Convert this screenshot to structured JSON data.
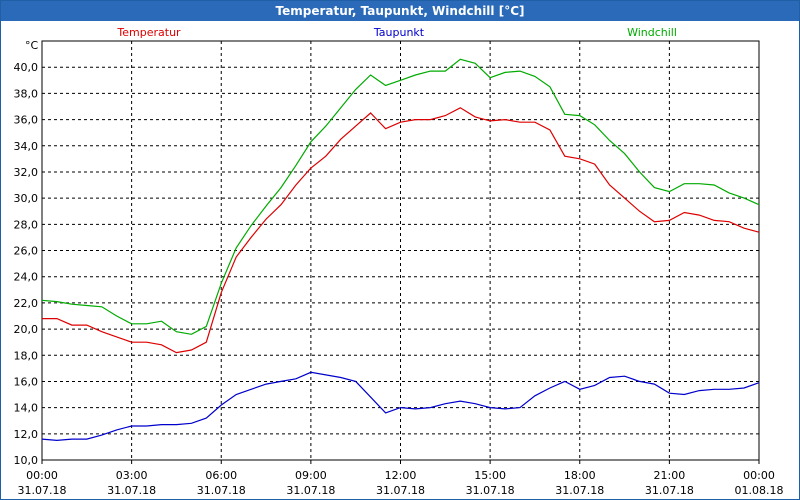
{
  "window": {
    "title": "Temperatur, Taupunkt, Windchill [°C]"
  },
  "colors": {
    "temperatur": "#dd0000",
    "taupunkt": "#0000cc",
    "windchill": "#00aa00",
    "grid": "#000000",
    "titlebar": "#2a6ab8"
  },
  "chart_data": {
    "type": "line",
    "title": "Temperatur, Taupunkt, Windchill [°C]",
    "ylabel": "°C",
    "ylim": [
      10,
      42
    ],
    "xlim": [
      0,
      24
    ],
    "y_ticks": [
      "10,0",
      "12,0",
      "14,0",
      "16,0",
      "18,0",
      "20,0",
      "22,0",
      "24,0",
      "26,0",
      "28,0",
      "30,0",
      "32,0",
      "34,0",
      "36,0",
      "38,0",
      "40,0"
    ],
    "x_ticks": [
      {
        "time": "00:00",
        "date": "31.07.18"
      },
      {
        "time": "03:00",
        "date": "31.07.18"
      },
      {
        "time": "06:00",
        "date": "31.07.18"
      },
      {
        "time": "09:00",
        "date": "31.07.18"
      },
      {
        "time": "12:00",
        "date": "31.07.18"
      },
      {
        "time": "15:00",
        "date": "31.07.18"
      },
      {
        "time": "18:00",
        "date": "31.07.18"
      },
      {
        "time": "21:00",
        "date": "31.07.18"
      },
      {
        "time": "00:00",
        "date": "01.08.18"
      }
    ],
    "grid": true,
    "legend": "top",
    "series": [
      {
        "name": "Temperatur",
        "x": [
          0,
          0.5,
          1,
          1.5,
          2,
          2.5,
          3,
          3.5,
          4,
          4.5,
          5,
          5.5,
          6,
          6.5,
          7,
          7.5,
          8,
          8.5,
          9,
          9.5,
          10,
          10.5,
          11,
          11.5,
          12,
          12.5,
          13,
          13.5,
          14,
          14.5,
          15,
          15.5,
          16,
          16.5,
          17,
          17.5,
          18,
          18.5,
          19,
          19.5,
          20,
          20.5,
          21,
          21.5,
          22,
          22.5,
          23,
          23.5,
          24
        ],
        "values": [
          20.8,
          20.8,
          20.3,
          20.3,
          19.8,
          19.4,
          19.0,
          19.0,
          18.8,
          18.2,
          18.4,
          19.0,
          22.8,
          25.5,
          27.0,
          28.4,
          29.5,
          31.0,
          32.3,
          33.2,
          34.5,
          35.5,
          36.5,
          35.3,
          35.8,
          36.0,
          36.0,
          36.3,
          36.9,
          36.2,
          35.9,
          36.0,
          35.8,
          35.8,
          35.2,
          33.2,
          33.0,
          32.6,
          31.0,
          30.0,
          29.0,
          28.2,
          28.3,
          28.9,
          28.7,
          28.3,
          28.2,
          27.7,
          27.4
        ]
      },
      {
        "name": "Taupunkt",
        "values": [
          11.6,
          11.5,
          11.6,
          11.6,
          11.9,
          12.3,
          12.6,
          12.6,
          12.7,
          12.7,
          12.8,
          13.2,
          14.2,
          15.0,
          15.4,
          15.8,
          16.0,
          16.2,
          16.7,
          16.5,
          16.3,
          16.0,
          14.8,
          13.6,
          14.0,
          13.9,
          14.0,
          14.3,
          14.5,
          14.3,
          14.0,
          13.9,
          14.0,
          14.9,
          15.5,
          16.0,
          15.4,
          15.7,
          16.3,
          16.4,
          16.0,
          15.8,
          15.1,
          15.0,
          15.3,
          15.4,
          15.4,
          15.5,
          15.9
        ]
      },
      {
        "name": "Windchill",
        "values": [
          22.2,
          22.1,
          21.9,
          21.8,
          21.7,
          21.0,
          20.4,
          20.4,
          20.6,
          19.8,
          19.6,
          20.2,
          23.5,
          26.2,
          27.9,
          29.4,
          30.8,
          32.5,
          34.3,
          35.5,
          36.9,
          38.3,
          39.4,
          38.6,
          39.0,
          39.4,
          39.7,
          39.7,
          40.6,
          40.3,
          39.2,
          39.6,
          39.7,
          39.3,
          38.5,
          36.4,
          36.3,
          35.6,
          34.4,
          33.4,
          32.0,
          30.8,
          30.5,
          31.1,
          31.1,
          31.0,
          30.4,
          30.0,
          29.5
        ]
      }
    ]
  }
}
